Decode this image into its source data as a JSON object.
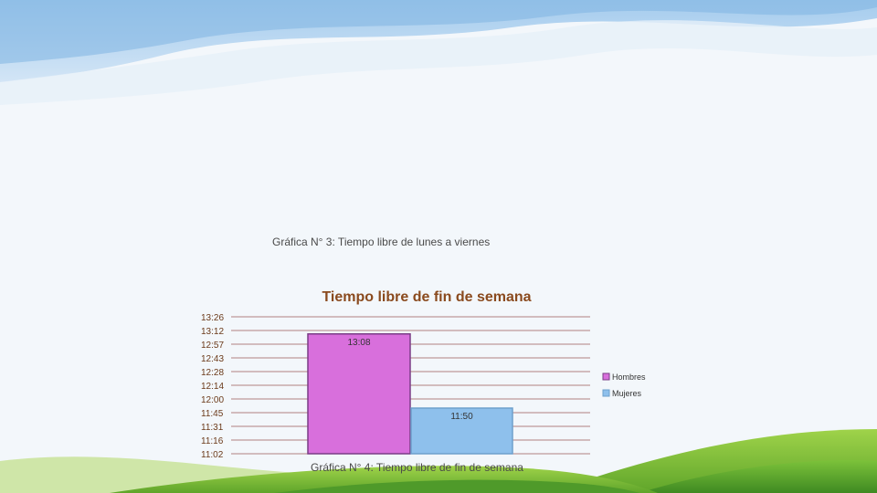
{
  "captions": {
    "graph3": "Gráfica N° 3: Tiempo libre de lunes a viernes",
    "graph4": "Gráfica N° 4: Tiempo libre de fin de semana"
  },
  "chart_data": {
    "type": "bar",
    "title": "Tiempo libre de fin de semana",
    "xlabel": "",
    "ylabel": "",
    "y_ticks": [
      "13:26",
      "13:12",
      "12:57",
      "12:43",
      "12:28",
      "12:14",
      "12:00",
      "11:45",
      "11:31",
      "11:16",
      "11:02"
    ],
    "ylim": [
      "11:02",
      "13:26"
    ],
    "grid": true,
    "legend_position": "right",
    "series": [
      {
        "name": "Hombres",
        "value": "13:08",
        "minutes": 788,
        "color": "#d86fdc",
        "border": "#7a3d86"
      },
      {
        "name": "Mujeres",
        "value": "11:50",
        "minutes": 710,
        "color": "#8ec0ec",
        "border": "#6ea0cc"
      }
    ],
    "colors": {
      "title": "#8a4a1e",
      "grid": "#b08080",
      "tick": "#6b3a1a"
    }
  }
}
